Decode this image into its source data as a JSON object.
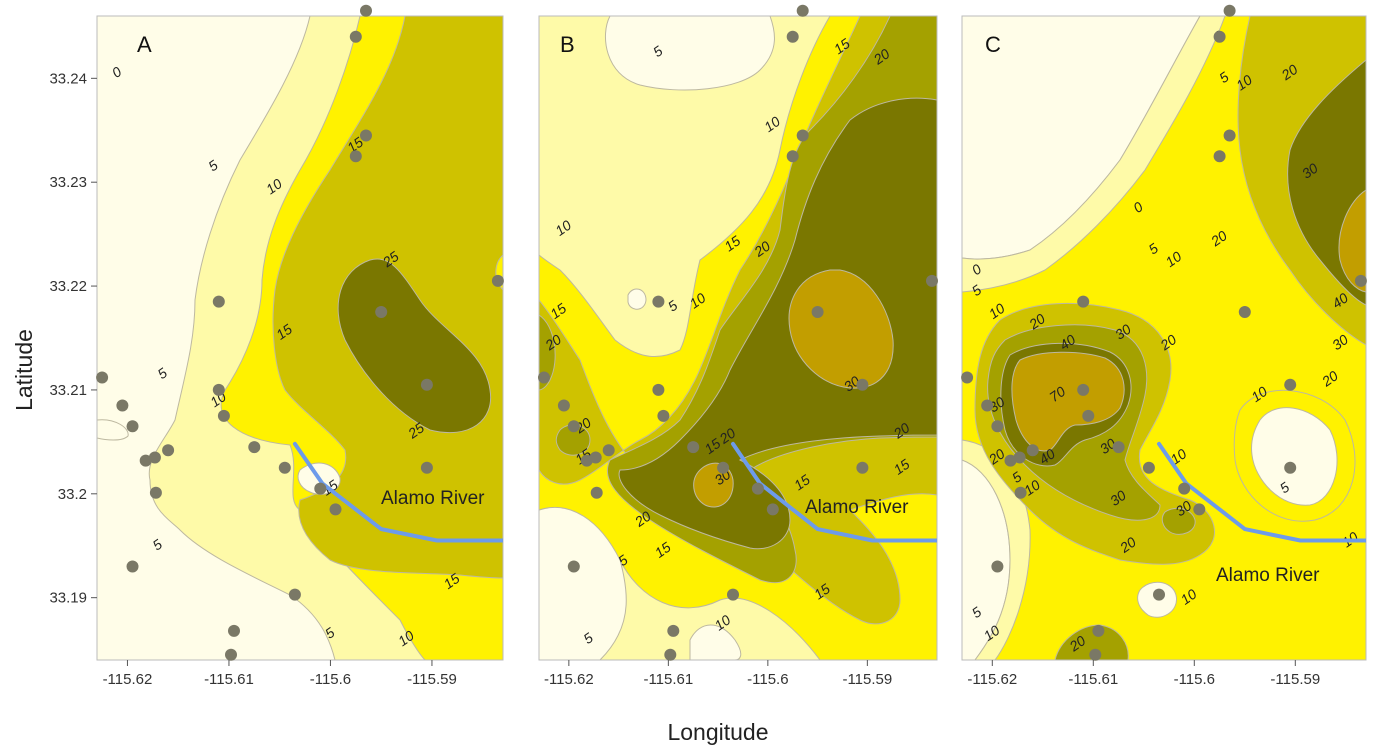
{
  "figure": {
    "xlabel": "Longitude",
    "ylabel": "Latitude"
  },
  "colors": {
    "background": "#ffffff",
    "level_0": "#fffde8",
    "level_5": "#fefaa8",
    "level_10": "#fff200",
    "level_15": "#cfc200",
    "level_20": "#a4a100",
    "level_25": "#7a7700",
    "level_30": "#c29e00",
    "contour_line": "#bdb8a0",
    "sample_point": "#7a7866",
    "river": "#6d9bea",
    "panel_border": "#bbbbbb"
  },
  "chart_data": [
    {
      "type": "contour",
      "panel": "A",
      "river_label": "Alamo River",
      "xlim": [
        -115.623,
        -115.583
      ],
      "ylim": [
        33.184,
        33.246
      ],
      "x_ticks": [
        "-115.62",
        "-115.61",
        "-115.6",
        "-115.59"
      ],
      "x_tick_values": [
        -115.62,
        -115.61,
        -115.6,
        -115.59
      ],
      "y_ticks": [
        "33.24",
        "33.23",
        "33.22",
        "33.21",
        "33.2",
        "33.19"
      ],
      "y_tick_values": [
        33.24,
        33.23,
        33.22,
        33.21,
        33.2,
        33.19
      ],
      "contour_levels": [
        "0",
        "5",
        "10",
        "15",
        "25"
      ],
      "contour_labels": [
        {
          "text": "0",
          "x": -115.621,
          "y": 33.2405
        },
        {
          "text": "5",
          "x": -115.6115,
          "y": 33.2315
        },
        {
          "text": "10",
          "x": -115.6055,
          "y": 33.2295
        },
        {
          "text": "15",
          "x": -115.5975,
          "y": 33.2335
        },
        {
          "text": "25",
          "x": -115.594,
          "y": 33.2225
        },
        {
          "text": "15",
          "x": -115.6045,
          "y": 33.2155
        },
        {
          "text": "5",
          "x": -115.6165,
          "y": 33.2115
        },
        {
          "text": "10",
          "x": -115.611,
          "y": 33.209
        },
        {
          "text": "25",
          "x": -115.5915,
          "y": 33.206
        },
        {
          "text": "15",
          "x": -115.6,
          "y": 33.2005
        },
        {
          "text": "5",
          "x": -115.617,
          "y": 33.195
        },
        {
          "text": "15",
          "x": -115.588,
          "y": 33.1915
        },
        {
          "text": "5",
          "x": -115.6,
          "y": 33.1865
        },
        {
          "text": "10",
          "x": -115.5925,
          "y": 33.186
        }
      ]
    },
    {
      "type": "contour",
      "panel": "B",
      "river_label": "Alamo River",
      "xlim": [
        -115.623,
        -115.583
      ],
      "ylim": [
        33.184,
        33.246
      ],
      "x_ticks": [
        "-115.62",
        "-115.61",
        "-115.6",
        "-115.59"
      ],
      "x_tick_values": [
        -115.62,
        -115.61,
        -115.6,
        -115.59
      ],
      "contour_levels": [
        "5",
        "10",
        "15",
        "20",
        "30"
      ],
      "contour_labels": [
        {
          "text": "5",
          "x": -115.611,
          "y": 33.2425
        },
        {
          "text": "15",
          "x": -115.5925,
          "y": 33.243
        },
        {
          "text": "20",
          "x": -115.5885,
          "y": 33.242
        },
        {
          "text": "10",
          "x": -115.5995,
          "y": 33.2355
        },
        {
          "text": "10",
          "x": -115.6205,
          "y": 33.2255
        },
        {
          "text": "15",
          "x": -115.6035,
          "y": 33.224
        },
        {
          "text": "20",
          "x": -115.6005,
          "y": 33.2235
        },
        {
          "text": "5",
          "x": -115.6095,
          "y": 33.218
        },
        {
          "text": "10",
          "x": -115.607,
          "y": 33.2185
        },
        {
          "text": "15",
          "x": -115.621,
          "y": 33.2175
        },
        {
          "text": "20",
          "x": -115.6215,
          "y": 33.2145
        },
        {
          "text": "30",
          "x": -115.5915,
          "y": 33.2105
        },
        {
          "text": "20",
          "x": -115.6185,
          "y": 33.2065
        },
        {
          "text": "20",
          "x": -115.5865,
          "y": 33.206
        },
        {
          "text": "20",
          "x": -115.604,
          "y": 33.2055
        },
        {
          "text": "15",
          "x": -115.6185,
          "y": 33.2035
        },
        {
          "text": "15",
          "x": -115.6055,
          "y": 33.2045
        },
        {
          "text": "30",
          "x": -115.6045,
          "y": 33.2015
        },
        {
          "text": "15",
          "x": -115.5965,
          "y": 33.201
        },
        {
          "text": "15",
          "x": -115.5865,
          "y": 33.2025
        },
        {
          "text": "20",
          "x": -115.6125,
          "y": 33.1975
        },
        {
          "text": "15",
          "x": -115.6105,
          "y": 33.1945
        },
        {
          "text": "5",
          "x": -115.6145,
          "y": 33.1935
        },
        {
          "text": "15",
          "x": -115.5945,
          "y": 33.1905
        },
        {
          "text": "10",
          "x": -115.6045,
          "y": 33.1875
        },
        {
          "text": "5",
          "x": -115.618,
          "y": 33.186
        }
      ]
    },
    {
      "type": "contour",
      "panel": "C",
      "river_label": "Alamo River",
      "xlim": [
        -115.623,
        -115.583
      ],
      "ylim": [
        33.184,
        33.246
      ],
      "x_ticks": [
        "-115.62",
        "-115.61",
        "-115.6",
        "-115.59"
      ],
      "x_tick_values": [
        -115.62,
        -115.61,
        -115.6,
        -115.59
      ],
      "contour_levels": [
        "0",
        "5",
        "10",
        "20",
        "30",
        "40",
        "70"
      ],
      "contour_labels": [
        {
          "text": "0",
          "x": -115.5975,
          "y": 33.244
        },
        {
          "text": "5",
          "x": -115.597,
          "y": 33.24
        },
        {
          "text": "10",
          "x": -115.595,
          "y": 33.2395
        },
        {
          "text": "20",
          "x": -115.5905,
          "y": 33.2405
        },
        {
          "text": "30",
          "x": -115.5885,
          "y": 33.231
        },
        {
          "text": "0",
          "x": -115.6055,
          "y": 33.2275
        },
        {
          "text": "5",
          "x": -115.604,
          "y": 33.2235
        },
        {
          "text": "10",
          "x": -115.602,
          "y": 33.2225
        },
        {
          "text": "20",
          "x": -115.5975,
          "y": 33.2245
        },
        {
          "text": "0",
          "x": -115.6215,
          "y": 33.2215
        },
        {
          "text": "5",
          "x": -115.6215,
          "y": 33.2195
        },
        {
          "text": "10",
          "x": -115.6195,
          "y": 33.2175
        },
        {
          "text": "40",
          "x": -115.5855,
          "y": 33.2185
        },
        {
          "text": "20",
          "x": -115.6155,
          "y": 33.2165
        },
        {
          "text": "30",
          "x": -115.607,
          "y": 33.2155
        },
        {
          "text": "20",
          "x": -115.6025,
          "y": 33.2145
        },
        {
          "text": "30",
          "x": -115.5855,
          "y": 33.2145
        },
        {
          "text": "40",
          "x": -115.6125,
          "y": 33.2145
        },
        {
          "text": "20",
          "x": -115.5865,
          "y": 33.211
        },
        {
          "text": "70",
          "x": -115.6135,
          "y": 33.2095
        },
        {
          "text": "10",
          "x": -115.5935,
          "y": 33.2095
        },
        {
          "text": "30",
          "x": -115.6195,
          "y": 33.2085
        },
        {
          "text": "30",
          "x": -115.6085,
          "y": 33.2045
        },
        {
          "text": "20",
          "x": -115.6195,
          "y": 33.2035
        },
        {
          "text": "40",
          "x": -115.6145,
          "y": 33.2035
        },
        {
          "text": "5",
          "x": -115.6175,
          "y": 33.2015
        },
        {
          "text": "10",
          "x": -115.616,
          "y": 33.2005
        },
        {
          "text": "10",
          "x": -115.6015,
          "y": 33.2035
        },
        {
          "text": "5",
          "x": -115.591,
          "y": 33.2005
        },
        {
          "text": "30",
          "x": -115.6075,
          "y": 33.1995
        },
        {
          "text": "30",
          "x": -115.601,
          "y": 33.1985
        },
        {
          "text": "10",
          "x": -115.5845,
          "y": 33.1955
        },
        {
          "text": "20",
          "x": -115.6065,
          "y": 33.195
        },
        {
          "text": "10",
          "x": -115.6005,
          "y": 33.19
        },
        {
          "text": "5",
          "x": -115.6215,
          "y": 33.1885
        },
        {
          "text": "10",
          "x": -115.62,
          "y": 33.1865
        },
        {
          "text": "20",
          "x": -115.6115,
          "y": 33.1855
        }
      ]
    }
  ]
}
